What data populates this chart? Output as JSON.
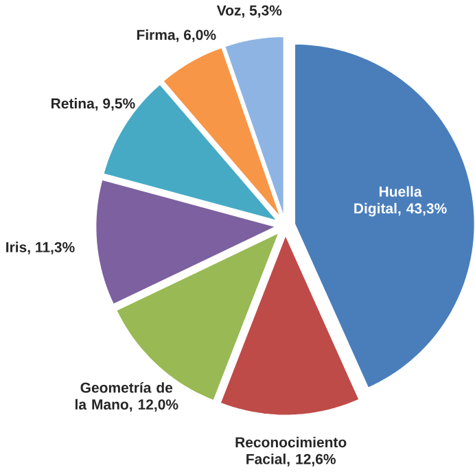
{
  "chart_data": {
    "type": "pie",
    "categories": [
      "Huella Digital, 43,3%",
      "Reconocimiento Facial, 12,6%",
      "Geometría de la Mano, 12,0%",
      "Iris, 11,3%",
      "Retina, 9,5%",
      "Firma, 6,0%",
      "Voz, 5,3%"
    ],
    "values": [
      43.3,
      12.6,
      12.0,
      11.3,
      9.5,
      6.0,
      5.3
    ],
    "colors": [
      "#4a7ebb",
      "#be4b48",
      "#98b954",
      "#7d60a0",
      "#46aac5",
      "#f79646",
      "#8eb4e3"
    ]
  }
}
